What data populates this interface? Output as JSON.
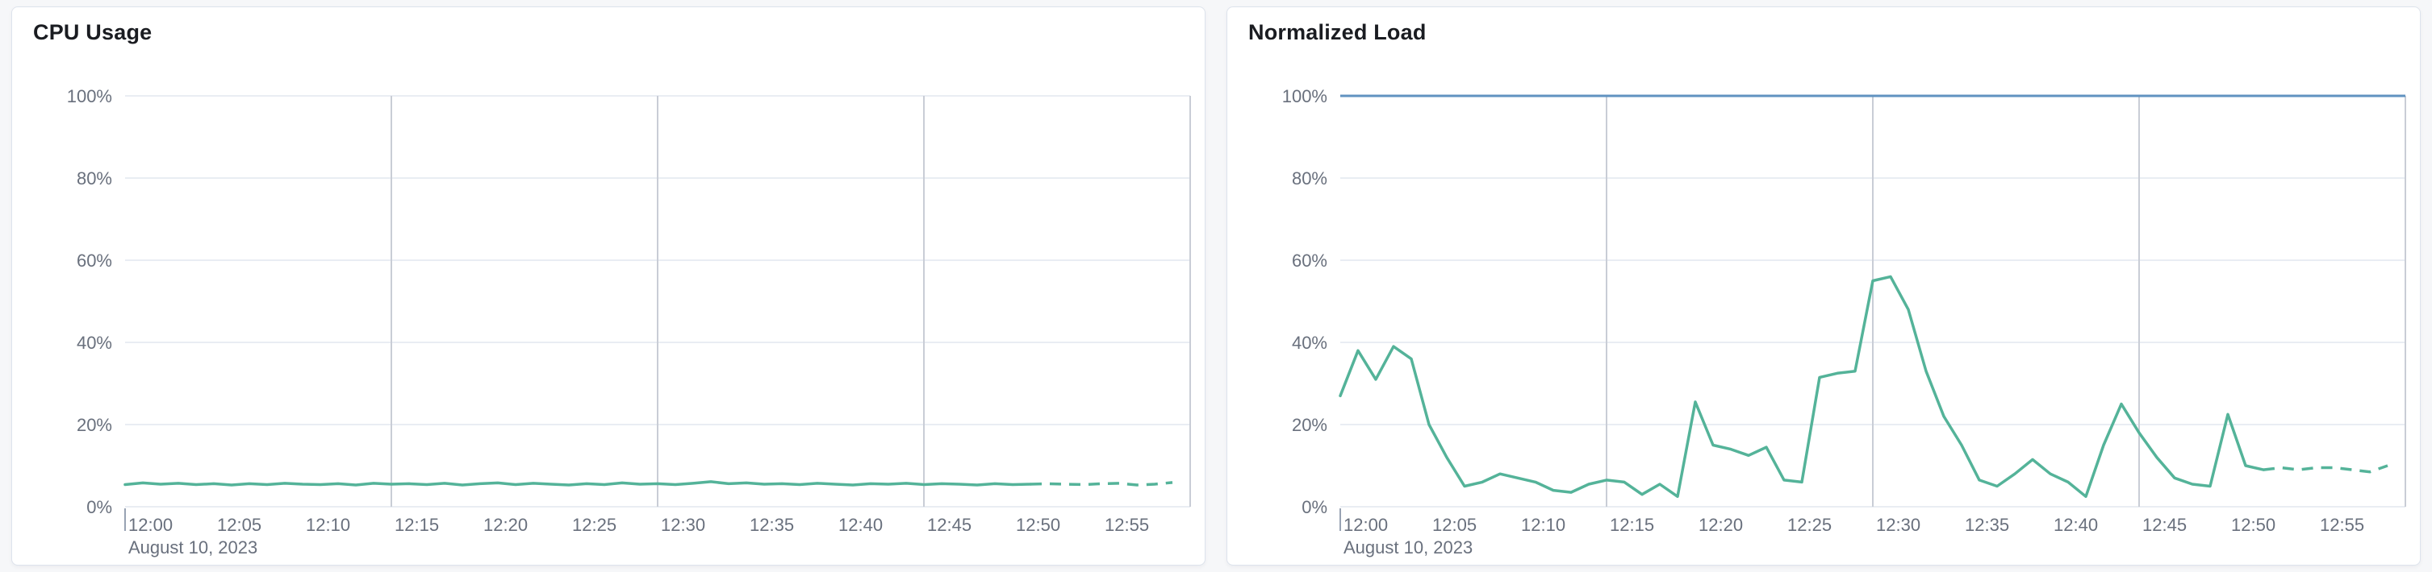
{
  "chart_data": [
    {
      "type": "line",
      "title": "CPU Usage",
      "x_axis_date_label": "August 10, 2023",
      "x_tick_interval_minutes": 5,
      "x_tick_labels": [
        "12:00",
        "12:05",
        "12:10",
        "12:15",
        "12:20",
        "12:25",
        "12:30",
        "12:35",
        "12:40",
        "12:45",
        "12:50",
        "12:55"
      ],
      "y_tick_labels": [
        "0%",
        "20%",
        "40%",
        "60%",
        "80%",
        "100%"
      ],
      "xlim_minutes": [
        0,
        60
      ],
      "ylim": [
        0,
        100
      ],
      "grid": {
        "horizontal_at": [
          0,
          20,
          40,
          60,
          80,
          100
        ],
        "vertical_at_minutes": [
          15,
          30,
          45,
          60
        ]
      },
      "threshold": null,
      "series": [
        {
          "name": "cpu-usage",
          "color": "#54b399",
          "dashed_from_minute": 51,
          "values": [
            5.4,
            5.8,
            5.5,
            5.7,
            5.4,
            5.6,
            5.3,
            5.6,
            5.4,
            5.7,
            5.5,
            5.4,
            5.6,
            5.3,
            5.7,
            5.5,
            5.6,
            5.4,
            5.7,
            5.3,
            5.6,
            5.8,
            5.4,
            5.7,
            5.5,
            5.3,
            5.6,
            5.4,
            5.8,
            5.5,
            5.6,
            5.4,
            5.7,
            6.1,
            5.6,
            5.8,
            5.5,
            5.6,
            5.4,
            5.7,
            5.5,
            5.3,
            5.6,
            5.5,
            5.7,
            5.4,
            5.6,
            5.5,
            5.3,
            5.6,
            5.4,
            5.5,
            5.6,
            5.5,
            5.4,
            5.6,
            5.7,
            5.3,
            5.5,
            5.9
          ]
        }
      ]
    },
    {
      "type": "line",
      "title": "Normalized Load",
      "x_axis_date_label": "August 10, 2023",
      "x_tick_interval_minutes": 5,
      "x_tick_labels": [
        "12:00",
        "12:05",
        "12:10",
        "12:15",
        "12:20",
        "12:25",
        "12:30",
        "12:35",
        "12:40",
        "12:45",
        "12:50",
        "12:55"
      ],
      "y_tick_labels": [
        "0%",
        "20%",
        "40%",
        "60%",
        "80%",
        "100%"
      ],
      "xlim_minutes": [
        0,
        60
      ],
      "ylim": [
        0,
        100
      ],
      "grid": {
        "horizontal_at": [
          0,
          20,
          40,
          60,
          80,
          100
        ],
        "vertical_at_minutes": [
          15,
          30,
          45,
          60
        ]
      },
      "threshold": {
        "name": "max-normalized-load",
        "value": 100,
        "color": "#6092c0"
      },
      "series": [
        {
          "name": "normalized-load",
          "color": "#54b399",
          "dashed_from_minute": 52,
          "values": [
            27,
            38,
            31,
            39,
            36,
            20,
            12,
            5,
            6,
            8,
            7,
            6,
            4,
            3.5,
            5.5,
            6.5,
            6,
            3,
            5.5,
            2.5,
            25.5,
            15,
            14,
            12.5,
            14.5,
            6.5,
            6,
            31.5,
            32.5,
            33,
            55,
            56,
            48,
            33,
            22,
            15,
            6.5,
            5,
            8,
            11.5,
            8,
            6,
            2.5,
            15,
            25,
            18,
            12,
            7,
            5.5,
            5,
            22.5,
            10,
            9,
            9.5,
            9,
            9.5,
            9.5,
            9,
            8.5,
            10
          ]
        }
      ]
    }
  ]
}
